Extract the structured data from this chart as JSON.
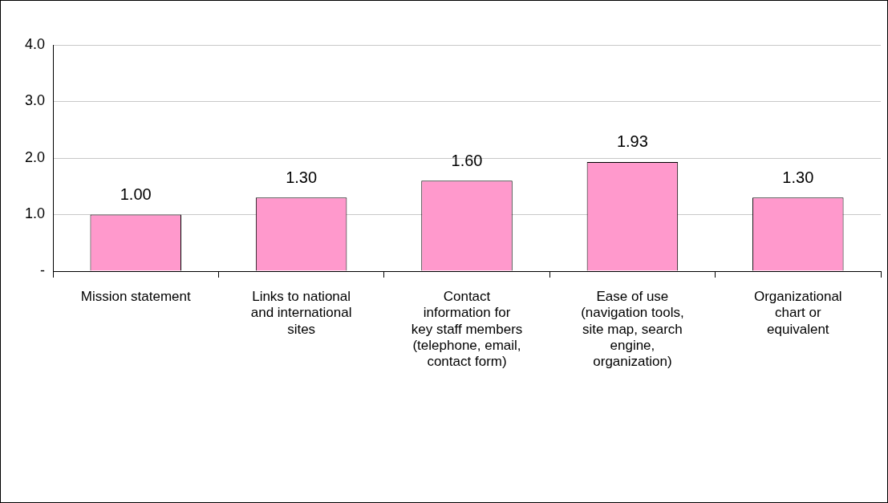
{
  "chart_data": {
    "type": "bar",
    "categories": [
      "Mission statement",
      "Links to national and international sites",
      "Contact information for key staff members (telephone, email, contact form)",
      "Ease of use (navigation tools, site map, search engine, organization)",
      "Organizational chart or equivalent"
    ],
    "values": [
      1.0,
      1.3,
      1.6,
      1.93,
      1.3
    ],
    "value_labels": [
      "1.00",
      "1.30",
      "1.60",
      "1.93",
      "1.30"
    ],
    "color": "#ff99cc",
    "ylim": [
      0,
      4
    ],
    "yticks": [
      {
        "value": 0,
        "label": "-"
      },
      {
        "value": 1,
        "label": "1.0"
      },
      {
        "value": 2,
        "label": "2.0"
      },
      {
        "value": 3,
        "label": "3.0"
      },
      {
        "value": 4,
        "label": "4.0"
      }
    ],
    "grid": "y",
    "legend": false
  }
}
